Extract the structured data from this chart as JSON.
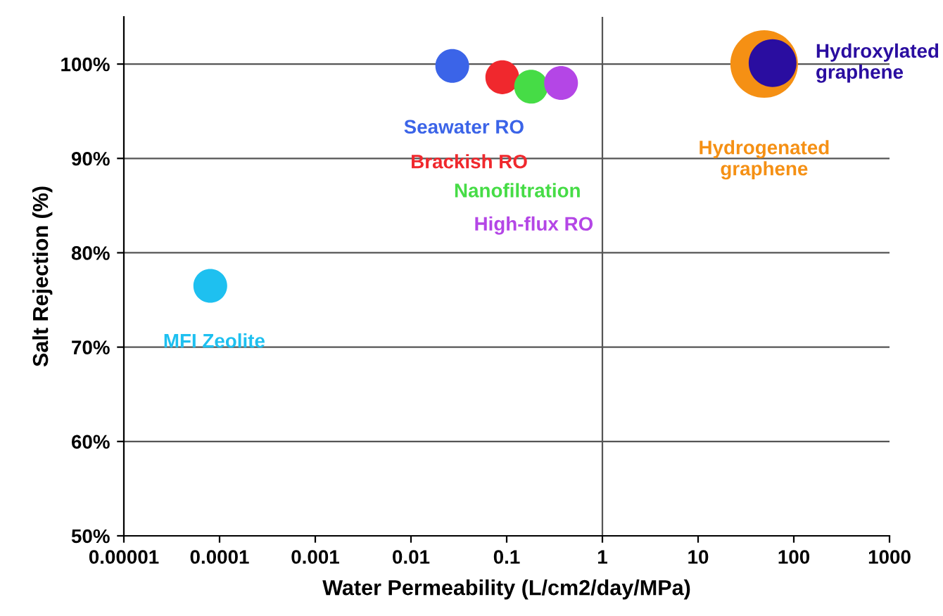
{
  "chart_data": {
    "type": "bubble",
    "xlabel": "Water Permeability (L/cm2/day/MPa)",
    "ylabel": "Salt Rejection (%)",
    "log": "x",
    "xlim": [
      1e-05,
      1000
    ],
    "ylim": [
      50,
      105
    ],
    "xticks": [
      {
        "value": 1e-05,
        "label": "0.00001"
      },
      {
        "value": 0.0001,
        "label": "0.0001"
      },
      {
        "value": 0.001,
        "label": "0.001"
      },
      {
        "value": 0.01,
        "label": "0.01"
      },
      {
        "value": 0.1,
        "label": "0.1"
      },
      {
        "value": 1,
        "label": "1"
      },
      {
        "value": 10,
        "label": "10"
      },
      {
        "value": 100,
        "label": "100"
      },
      {
        "value": 1000,
        "label": "1000"
      }
    ],
    "yticks": [
      {
        "value": 50,
        "label": "50%"
      },
      {
        "value": 60,
        "label": "60%"
      },
      {
        "value": 70,
        "label": "70%"
      },
      {
        "value": 80,
        "label": "80%"
      },
      {
        "value": 90,
        "label": "90%"
      },
      {
        "value": 100,
        "label": "100%"
      }
    ],
    "grid": "y",
    "legend": false,
    "ref_lines": [
      {
        "axis": "x",
        "value": 1,
        "color": "#555555"
      }
    ],
    "series": [
      {
        "name": "MFI Zeolite",
        "color": "#1ec0f0",
        "x": [
          8e-05
        ],
        "values": [
          76.5
        ],
        "sizes": [
          0.25
        ]
      },
      {
        "name": "Seawater RO",
        "color": "#3b64e8",
        "x": [
          0.027
        ],
        "values": [
          99.8
        ],
        "sizes": [
          0.25
        ]
      },
      {
        "name": "Brackish RO",
        "color": "#f0282d",
        "x": [
          0.09
        ],
        "values": [
          98.6
        ],
        "sizes": [
          0.25
        ]
      },
      {
        "name": "Nanofiltration",
        "color": "#46dc46",
        "x": [
          0.18
        ],
        "values": [
          97.6
        ],
        "sizes": [
          0.25
        ]
      },
      {
        "name": "High-flux RO",
        "color": "#b446e6",
        "x": [
          0.37
        ],
        "values": [
          98
        ],
        "sizes": [
          0.25
        ]
      },
      {
        "name": "Hydrogenated\ngraphene",
        "color": "#f59014",
        "x": [
          49
        ],
        "values": [
          100
        ],
        "sizes": [
          1
        ]
      },
      {
        "name": "Hydroxylated\ngraphene",
        "color": "#2a0da0",
        "x": [
          60
        ],
        "values": [
          100.1
        ],
        "sizes": [
          0.5
        ]
      }
    ]
  }
}
